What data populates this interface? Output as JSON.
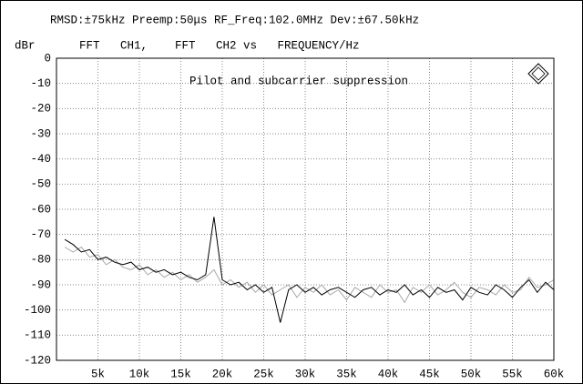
{
  "chart_data": {
    "type": "line",
    "title": "RMSD:±75kHz Preemp:50μs RF_Freq:102.0MHz Dev:±67.50kHz",
    "subtitle": "FFT   CH1,    FFT   CH2 vs   FREQUENCY/Hz",
    "y_label": "dBr",
    "annotation": "Pilot and subcarrier suppression",
    "x": [
      1000,
      2000,
      3000,
      4000,
      5000,
      6000,
      7000,
      8000,
      9000,
      10000,
      11000,
      12000,
      13000,
      14000,
      15000,
      16000,
      17000,
      18000,
      19000,
      20000,
      21000,
      22000,
      23000,
      24000,
      25000,
      26000,
      27000,
      28000,
      29000,
      30000,
      31000,
      32000,
      33000,
      34000,
      35000,
      36000,
      37000,
      38000,
      39000,
      40000,
      41000,
      42000,
      43000,
      44000,
      45000,
      46000,
      47000,
      48000,
      49000,
      50000,
      51000,
      52000,
      53000,
      54000,
      55000,
      56000,
      57000,
      58000,
      59000,
      60000
    ],
    "series": [
      {
        "color": "#a8a8a8",
        "values": [
          -75,
          -77,
          -75,
          -79,
          -78,
          -82,
          -80,
          -83,
          -84,
          -82,
          -86,
          -84,
          -87,
          -85,
          -88,
          -86,
          -89,
          -87,
          -84,
          -90,
          -88,
          -91,
          -89,
          -93,
          -90,
          -94,
          -92,
          -90,
          -95,
          -91,
          -93,
          -90,
          -94,
          -92,
          -96,
          -91,
          -93,
          -95,
          -90,
          -93,
          -92,
          -97,
          -91,
          -93,
          -90,
          -94,
          -92,
          -89,
          -93,
          -95,
          -91,
          -92,
          -94,
          -90,
          -93,
          -92,
          -87,
          -91,
          -90,
          -88
        ]
      },
      {
        "color": "#000000",
        "values": [
          -72,
          -74,
          -77,
          -76,
          -80,
          -79,
          -81,
          -82,
          -81,
          -84,
          -83,
          -85,
          -84,
          -86,
          -85,
          -87,
          -88,
          -86,
          -63,
          -88,
          -90,
          -89,
          -92,
          -90,
          -93,
          -91,
          -105,
          -92,
          -90,
          -93,
          -91,
          -94,
          -92,
          -91,
          -93,
          -95,
          -92,
          -91,
          -94,
          -92,
          -93,
          -90,
          -94,
          -92,
          -95,
          -91,
          -93,
          -92,
          -96,
          -91,
          -93,
          -94,
          -90,
          -92,
          -95,
          -91,
          -88,
          -93,
          -89,
          -92
        ]
      }
    ],
    "xlim": [
      0,
      60000
    ],
    "ylim": [
      -120,
      0
    ],
    "xticks": [
      {
        "value": 5000,
        "label": "5k"
      },
      {
        "value": 10000,
        "label": "10k"
      },
      {
        "value": 15000,
        "label": "15k"
      },
      {
        "value": 20000,
        "label": "20k"
      },
      {
        "value": 25000,
        "label": "25k"
      },
      {
        "value": 30000,
        "label": "30k"
      },
      {
        "value": 35000,
        "label": "35k"
      },
      {
        "value": 40000,
        "label": "40k"
      },
      {
        "value": 45000,
        "label": "45k"
      },
      {
        "value": 50000,
        "label": "50k"
      },
      {
        "value": 55000,
        "label": "55k"
      },
      {
        "value": 60000,
        "label": "60k"
      }
    ],
    "yticks": [
      0,
      -10,
      -20,
      -30,
      -40,
      -50,
      -60,
      -70,
      -80,
      -90,
      -100,
      -110,
      -120
    ],
    "grid": true
  }
}
